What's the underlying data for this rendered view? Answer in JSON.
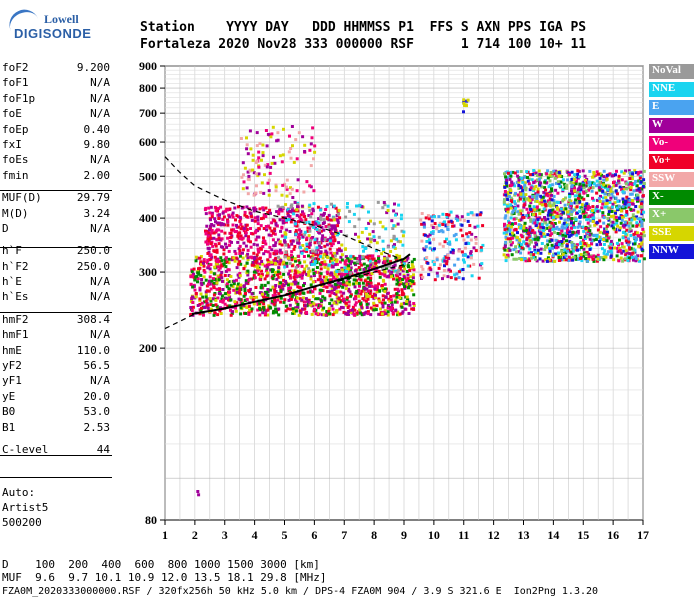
{
  "logo": {
    "top": "Lowell",
    "bottom": "DIGISONDE"
  },
  "header": {
    "row1": "Station    YYYY DAY   DDD HHMMSS P1  FFS S AXN PPS IGA PS",
    "row2": "Fortaleza 2020 Nov28 333 000000 RSF      1 714 100 10+ 11"
  },
  "params": [
    {
      "label": "foF2",
      "value": "9.200"
    },
    {
      "label": "foF1",
      "value": "N/A"
    },
    {
      "label": "foF1p",
      "value": "N/A"
    },
    {
      "label": "foE",
      "value": "N/A"
    },
    {
      "label": "foEp",
      "value": "0.40"
    },
    {
      "label": "fxI",
      "value": "9.80"
    },
    {
      "label": "foEs",
      "value": "N/A"
    },
    {
      "label": "fmin",
      "value": "2.00"
    },
    {
      "label": "MUF(D)",
      "value": "29.79"
    },
    {
      "label": "M(D)",
      "value": "3.24"
    },
    {
      "label": "D",
      "value": "N/A"
    },
    {
      "label": "h`F",
      "value": "250.0"
    },
    {
      "label": "h`F2",
      "value": "250.0"
    },
    {
      "label": "h`E",
      "value": "N/A"
    },
    {
      "label": "h`Es",
      "value": "N/A"
    },
    {
      "label": "hmF2",
      "value": "308.4"
    },
    {
      "label": "hmF1",
      "value": "N/A"
    },
    {
      "label": "hmE",
      "value": "110.0"
    },
    {
      "label": "yF2",
      "value": "56.5"
    },
    {
      "label": "yF1",
      "value": "N/A"
    },
    {
      "label": "yE",
      "value": "20.0"
    },
    {
      "label": "B0",
      "value": "53.0"
    },
    {
      "label": "B1",
      "value": "2.53"
    },
    {
      "label": "C-level",
      "value": "44"
    }
  ],
  "auto": {
    "line1": "Auto:",
    "line2": "Artist5",
    "line3": "500200"
  },
  "legend": [
    {
      "label": "NoVal",
      "color": "#9a9a9a"
    },
    {
      "label": "NNE",
      "color": "#1ad4f0"
    },
    {
      "label": "E",
      "color": "#4aa3f0"
    },
    {
      "label": "W",
      "color": "#a0009a"
    },
    {
      "label": "Vo-",
      "color": "#f0007a"
    },
    {
      "label": "Vo+",
      "color": "#f00028"
    },
    {
      "label": "SSW",
      "color": "#f2a8a8"
    },
    {
      "label": "X-",
      "color": "#008a00"
    },
    {
      "label": "X+",
      "color": "#8ac86a"
    },
    {
      "label": "SSE",
      "color": "#d6d600"
    },
    {
      "label": "NNW",
      "color": "#1414d8"
    }
  ],
  "chart_data": {
    "type": "scatter",
    "title": "",
    "xlabel": "",
    "ylabel": "",
    "xlim": [
      1,
      17
    ],
    "ylim": [
      80,
      900
    ],
    "y_log": true,
    "x_ticks": [
      1,
      2,
      3,
      4,
      5,
      6,
      7,
      8,
      9,
      10,
      11,
      12,
      13,
      14,
      15,
      16,
      17
    ],
    "y_ticks": [
      80,
      200,
      300,
      400,
      500,
      600,
      700,
      800,
      900
    ],
    "grid": true,
    "legend_position": "right",
    "clusters": [
      {
        "x": [
          1.8,
          9.3
        ],
        "y": [
          240,
          330
        ],
        "colors": [
          "#f00028",
          "#f0007a",
          "#a0009a",
          "#d6d600",
          "#008a00"
        ],
        "count": 1400
      },
      {
        "x": [
          2.3,
          6.8
        ],
        "y": [
          330,
          430
        ],
        "colors": [
          "#a0009a",
          "#f0007a",
          "#f00028"
        ],
        "count": 500
      },
      {
        "x": [
          4.7,
          9.0
        ],
        "y": [
          300,
          440
        ],
        "colors": [
          "#9a9a9a",
          "#d6d600",
          "#a0009a",
          "#1ad4f0"
        ],
        "count": 250
      },
      {
        "x": [
          3.5,
          6.0
        ],
        "y": [
          450,
          660
        ],
        "colors": [
          "#d6d600",
          "#f2a8a8",
          "#a0009a",
          "#f0007a"
        ],
        "count": 120
      },
      {
        "x": [
          9.5,
          11.6
        ],
        "y": [
          290,
          420
        ],
        "colors": [
          "#1414d8",
          "#1ad4f0",
          "#f00028",
          "#f2a8a8",
          "#a0009a",
          "#4aa3f0"
        ],
        "count": 200
      },
      {
        "x": [
          10.9,
          11.1
        ],
        "y": [
          710,
          760
        ],
        "colors": [
          "#a0009a",
          "#d6d600",
          "#1414d8"
        ],
        "count": 10
      },
      {
        "x": [
          12.3,
          17.0
        ],
        "y": [
          320,
          520
        ],
        "colors": [
          "#1414d8",
          "#4aa3f0",
          "#1ad4f0",
          "#f00028",
          "#f0007a",
          "#a0009a",
          "#d6d600",
          "#8ac86a",
          "#008a00"
        ],
        "count": 1500
      },
      {
        "x": [
          1.9,
          2.1
        ],
        "y": [
          90,
          96
        ],
        "colors": [
          "#a0009a"
        ],
        "count": 2
      }
    ],
    "trace_curve": {
      "x": [
        1.9,
        3,
        4,
        5,
        6,
        7,
        8,
        9,
        9.2
      ],
      "y": [
        240,
        247,
        256,
        265,
        278,
        290,
        305,
        322,
        330
      ],
      "color": "#000000"
    },
    "dashed_lower": {
      "x": [
        1,
        2,
        3,
        4,
        5,
        6,
        7,
        8,
        9,
        9.2
      ],
      "y": [
        222,
        240,
        248,
        256,
        266,
        277,
        288,
        300,
        312,
        316
      ],
      "color": "#000000"
    },
    "dashed_upper": {
      "x": [
        1,
        1.5,
        2,
        3,
        4,
        5,
        6,
        7,
        8,
        9
      ],
      "y": [
        555,
        510,
        475,
        440,
        415,
        400,
        385,
        365,
        340,
        320
      ],
      "color": "#000000"
    }
  },
  "footer": {
    "row1": "D    100  200  400  600  800 1000 1500 3000 [km]",
    "row2": "MUF  9.6  9.7 10.1 10.9 12.0 13.5 18.1 29.8 [MHz]",
    "row3": "FZA0M_2020333000000.RSF / 320fx256h 50 kHz 5.0 km / DPS-4 FZA0M 904 / 3.9 S 321.6 E  Ion2Png 1.3.20"
  }
}
